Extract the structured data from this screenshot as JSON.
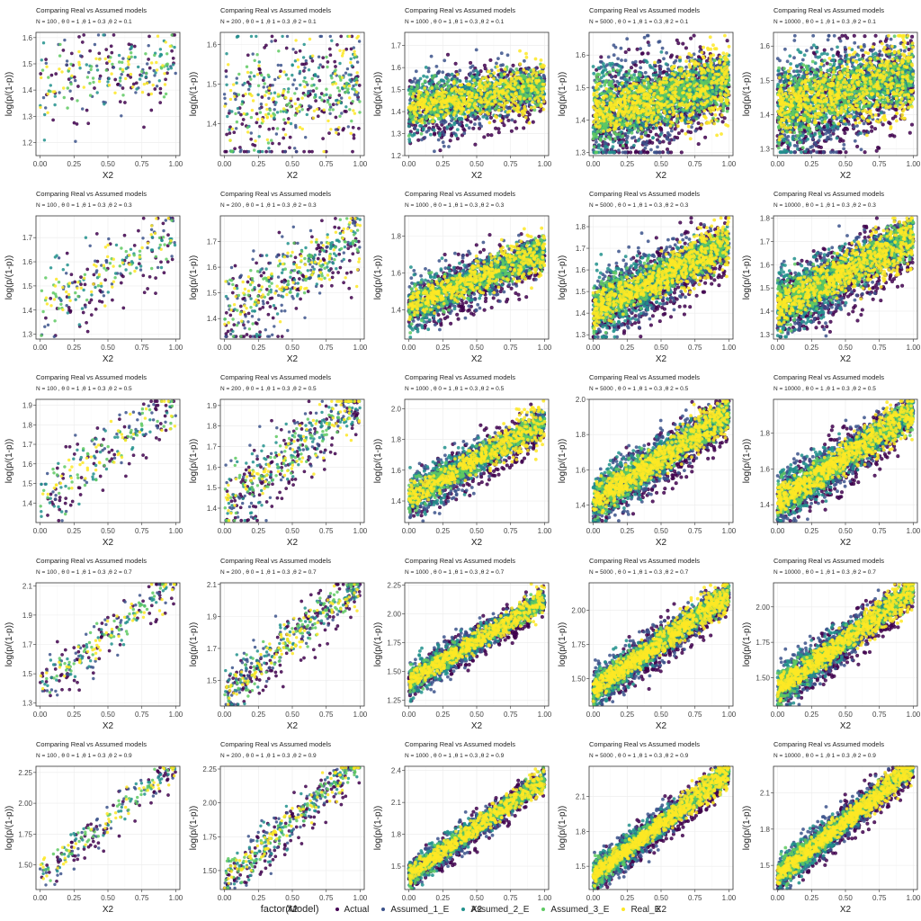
{
  "figure": {
    "panel_title": "Comparing Real vs Assumed models",
    "xlabel": "X2",
    "ylabel": "log(p/(1-p))",
    "legend_title": "factor(Model)"
  },
  "legend": [
    {
      "name": "Actual",
      "color": "#440154"
    },
    {
      "name": "Assumed_1_E",
      "color": "#3b528b"
    },
    {
      "name": "Assumed_2_E",
      "color": "#21918c"
    },
    {
      "name": "Assumed_3_E",
      "color": "#5ec962"
    },
    {
      "name": "Real_E",
      "color": "#fde725"
    }
  ],
  "chart_data": {
    "type": "scatter",
    "grid": true,
    "x_ticks": [
      0.0,
      0.25,
      0.5,
      0.75,
      1.0
    ],
    "x_tick_labels": [
      "0.00",
      "0.25",
      "0.50",
      "0.75",
      "1.00"
    ],
    "xlim": [
      -0.03,
      1.03
    ],
    "series": [
      "Actual",
      "Assumed_1_E",
      "Assumed_2_E",
      "Assumed_3_E",
      "Real_E"
    ],
    "panels": [
      {
        "subtitle": "N = 100 , θ 0 = 1 ,θ 1 = 0.3 ,θ 2 = 0.1",
        "N": 100,
        "theta2": 0.1,
        "ylim": [
          1.15,
          1.62
        ],
        "y_ticks": [
          1.2,
          1.3,
          1.4,
          1.5,
          1.6
        ],
        "y_tick_labels": [
          "1.2",
          "1.3",
          "1.4",
          "1.5",
          "1.6"
        ]
      },
      {
        "subtitle": "N = 200 , θ 0 = 1 ,θ 1 = 0.3 ,θ 2 = 0.1",
        "N": 200,
        "theta2": 0.1,
        "ylim": [
          1.32,
          1.63
        ],
        "y_ticks": [
          1.4,
          1.5,
          1.6
        ],
        "y_tick_labels": [
          "1.4",
          "1.5",
          "1.6"
        ]
      },
      {
        "subtitle": "N = 1000 , θ 0 = 1 ,θ 1 = 0.3 ,θ 2 = 0.1",
        "N": 1000,
        "theta2": 0.1,
        "ylim": [
          1.2,
          1.76
        ],
        "y_ticks": [
          1.2,
          1.3,
          1.4,
          1.5,
          1.6,
          1.7
        ],
        "y_tick_labels": [
          "1.2",
          "1.3",
          "1.4",
          "1.5",
          "1.6",
          "1.7"
        ]
      },
      {
        "subtitle": "N = 5000 , θ 0 = 1 ,θ 1 = 0.3 ,θ 2 = 0.1",
        "N": 5000,
        "theta2": 0.1,
        "ylim": [
          1.29,
          1.67
        ],
        "y_ticks": [
          1.3,
          1.4,
          1.5,
          1.6
        ],
        "y_tick_labels": [
          "1.3",
          "1.4",
          "1.5",
          "1.6"
        ]
      },
      {
        "subtitle": "N = 10000 , θ 0 = 1 ,θ 1 = 0.3 ,θ 2 = 0.1",
        "N": 10000,
        "theta2": 0.1,
        "ylim": [
          1.28,
          1.64
        ],
        "y_ticks": [
          1.3,
          1.4,
          1.5,
          1.6
        ],
        "y_tick_labels": [
          "1.3",
          "1.4",
          "1.5",
          "1.6"
        ]
      },
      {
        "subtitle": "N = 100 , θ 0 = 1 ,θ 1 = 0.3 ,θ 2 = 0.3",
        "N": 100,
        "theta2": 0.3,
        "ylim": [
          1.28,
          1.79
        ],
        "y_ticks": [
          1.3,
          1.4,
          1.5,
          1.6,
          1.7
        ],
        "y_tick_labels": [
          "1.3",
          "1.4",
          "1.5",
          "1.6",
          "1.7"
        ]
      },
      {
        "subtitle": "N = 200 , θ 0 = 1 ,θ 1 = 0.3 ,θ 2 = 0.3",
        "N": 200,
        "theta2": 0.3,
        "ylim": [
          1.32,
          1.8
        ],
        "y_ticks": [
          1.4,
          1.5,
          1.6,
          1.7
        ],
        "y_tick_labels": [
          "1.4",
          "1.5",
          "1.6",
          "1.7"
        ]
      },
      {
        "subtitle": "N = 1000 , θ 0 = 1 ,θ 1 = 0.3 ,θ 2 = 0.3",
        "N": 1000,
        "theta2": 0.3,
        "ylim": [
          1.24,
          1.91
        ],
        "y_ticks": [
          1.4,
          1.6,
          1.8
        ],
        "y_tick_labels": [
          "1.4",
          "1.6",
          "1.8"
        ]
      },
      {
        "subtitle": "N = 5000 , θ 0 = 1 ,θ 1 = 0.3 ,θ 2 = 0.3",
        "N": 5000,
        "theta2": 0.3,
        "ylim": [
          1.28,
          1.85
        ],
        "y_ticks": [
          1.3,
          1.4,
          1.5,
          1.6,
          1.7,
          1.8
        ],
        "y_tick_labels": [
          "1.3",
          "1.4",
          "1.5",
          "1.6",
          "1.7",
          "1.8"
        ]
      },
      {
        "subtitle": "N = 10000 , θ 0 = 1 ,θ 1 = 0.3 ,θ 2 = 0.3",
        "N": 10000,
        "theta2": 0.3,
        "ylim": [
          1.28,
          1.81
        ],
        "y_ticks": [
          1.3,
          1.4,
          1.5,
          1.6,
          1.7,
          1.8
        ],
        "y_tick_labels": [
          "1.3",
          "1.4",
          "1.5",
          "1.6",
          "1.7",
          "1.8"
        ]
      },
      {
        "subtitle": "N = 100 , θ 0 = 1 ,θ 1 = 0.3 ,θ 2 = 0.5",
        "N": 100,
        "theta2": 0.5,
        "ylim": [
          1.3,
          1.93
        ],
        "y_ticks": [
          1.4,
          1.5,
          1.6,
          1.7,
          1.8,
          1.9
        ],
        "y_tick_labels": [
          "1.4",
          "1.5",
          "1.6",
          "1.7",
          "1.8",
          "1.9"
        ]
      },
      {
        "subtitle": "N = 200 , θ 0 = 1 ,θ 1 = 0.3 ,θ 2 = 0.5",
        "N": 200,
        "theta2": 0.5,
        "ylim": [
          1.33,
          1.93
        ],
        "y_ticks": [
          1.4,
          1.5,
          1.6,
          1.7,
          1.8,
          1.9
        ],
        "y_tick_labels": [
          "1.4",
          "1.5",
          "1.6",
          "1.7",
          "1.8",
          "1.9"
        ]
      },
      {
        "subtitle": "N = 1000 , θ 0 = 1 ,θ 1 = 0.3 ,θ 2 = 0.5",
        "N": 1000,
        "theta2": 0.5,
        "ylim": [
          1.26,
          2.06
        ],
        "y_ticks": [
          1.4,
          1.6,
          1.8,
          2.0
        ],
        "y_tick_labels": [
          "1.4",
          "1.6",
          "1.8",
          "2.0"
        ]
      },
      {
        "subtitle": "N = 5000 , θ 0 = 1 ,θ 1 = 0.3 ,θ 2 = 0.5",
        "N": 5000,
        "theta2": 0.5,
        "ylim": [
          1.3,
          2.0
        ],
        "y_ticks": [
          1.4,
          1.6,
          1.8,
          2.0
        ],
        "y_tick_labels": [
          "1.4",
          "1.6",
          "1.8",
          "2.0"
        ]
      },
      {
        "subtitle": "N = 10000 , θ 0 = 1 ,θ 1 = 0.3 ,θ 2 = 0.5",
        "N": 10000,
        "theta2": 0.5,
        "ylim": [
          1.3,
          1.99
        ],
        "y_ticks": [
          1.4,
          1.6,
          1.8
        ],
        "y_tick_labels": [
          "1.4",
          "1.6",
          "1.8"
        ]
      },
      {
        "subtitle": "N = 100 , θ 0 = 1 ,θ 1 = 0.3 ,θ 2 = 0.7",
        "N": 100,
        "theta2": 0.7,
        "ylim": [
          1.28,
          2.12
        ],
        "y_ticks": [
          1.3,
          1.5,
          1.7,
          1.9,
          2.1
        ],
        "y_tick_labels": [
          "1.3",
          "1.5",
          "1.7",
          "1.9",
          "2.1"
        ]
      },
      {
        "subtitle": "N = 200 , θ 0 = 1 ,θ 1 = 0.3 ,θ 2 = 0.7",
        "N": 200,
        "theta2": 0.7,
        "ylim": [
          1.34,
          2.11
        ],
        "y_ticks": [
          1.5,
          1.7,
          1.9,
          2.1
        ],
        "y_tick_labels": [
          "1.5",
          "1.7",
          "1.9",
          "2.1"
        ]
      },
      {
        "subtitle": "N = 1000 , θ 0 = 1 ,θ 1 = 0.3 ,θ 2 = 0.7",
        "N": 1000,
        "theta2": 0.7,
        "ylim": [
          1.2,
          2.27
        ],
        "y_ticks": [
          1.25,
          1.5,
          1.75,
          2.0,
          2.25
        ],
        "y_tick_labels": [
          "1.25",
          "1.50",
          "1.75",
          "2.00",
          "2.25"
        ]
      },
      {
        "subtitle": "N = 5000 , θ 0 = 1 ,θ 1 = 0.3 ,θ 2 = 0.7",
        "N": 5000,
        "theta2": 0.7,
        "ylim": [
          1.3,
          2.2
        ],
        "y_ticks": [
          1.5,
          1.75,
          2.0
        ],
        "y_tick_labels": [
          "1.50",
          "1.75",
          "2.00"
        ]
      },
      {
        "subtitle": "N = 10000 , θ 0 = 1 ,θ 1 = 0.3 ,θ 2 = 0.7",
        "N": 10000,
        "theta2": 0.7,
        "ylim": [
          1.3,
          2.17
        ],
        "y_ticks": [
          1.5,
          1.75,
          2.0
        ],
        "y_tick_labels": [
          "1.50",
          "1.75",
          "2.00"
        ]
      },
      {
        "subtitle": "N = 100 , θ 0 = 1 ,θ 1 = 0.3 ,θ 2 = 0.9",
        "N": 100,
        "theta2": 0.9,
        "ylim": [
          1.3,
          2.3
        ],
        "y_ticks": [
          1.5,
          1.75,
          2.0,
          2.25
        ],
        "y_tick_labels": [
          "1.50",
          "1.75",
          "2.00",
          "2.25"
        ]
      },
      {
        "subtitle": "N = 200 , θ 0 = 1 ,θ 1 = 0.3 ,θ 2 = 0.9",
        "N": 200,
        "theta2": 0.9,
        "ylim": [
          1.36,
          2.27
        ],
        "y_ticks": [
          1.5,
          1.75,
          2.0,
          2.25
        ],
        "y_tick_labels": [
          "1.50",
          "1.75",
          "2.00",
          "2.25"
        ]
      },
      {
        "subtitle": "N = 1000 , θ 0 = 1 ,θ 1 = 0.3 ,θ 2 = 0.9",
        "N": 1000,
        "theta2": 0.9,
        "ylim": [
          1.28,
          2.44
        ],
        "y_ticks": [
          1.5,
          1.8,
          2.1,
          2.4
        ],
        "y_tick_labels": [
          "1.5",
          "1.8",
          "2.1",
          "2.4"
        ]
      },
      {
        "subtitle": "N = 5000 , θ 0 = 1 ,θ 1 = 0.3 ,θ 2 = 0.9",
        "N": 5000,
        "theta2": 0.9,
        "ylim": [
          1.3,
          2.36
        ],
        "y_ticks": [
          1.5,
          1.8,
          2.1
        ],
        "y_tick_labels": [
          "1.5",
          "1.8",
          "2.1"
        ]
      },
      {
        "subtitle": "N = 10000 , θ 0 = 1 ,θ 1 = 0.3 ,θ 2 = 0.9",
        "N": 10000,
        "theta2": 0.9,
        "ylim": [
          1.3,
          2.32
        ],
        "y_ticks": [
          1.5,
          1.8,
          2.1
        ],
        "y_tick_labels": [
          "1.5",
          "1.8",
          "2.1"
        ]
      }
    ]
  }
}
